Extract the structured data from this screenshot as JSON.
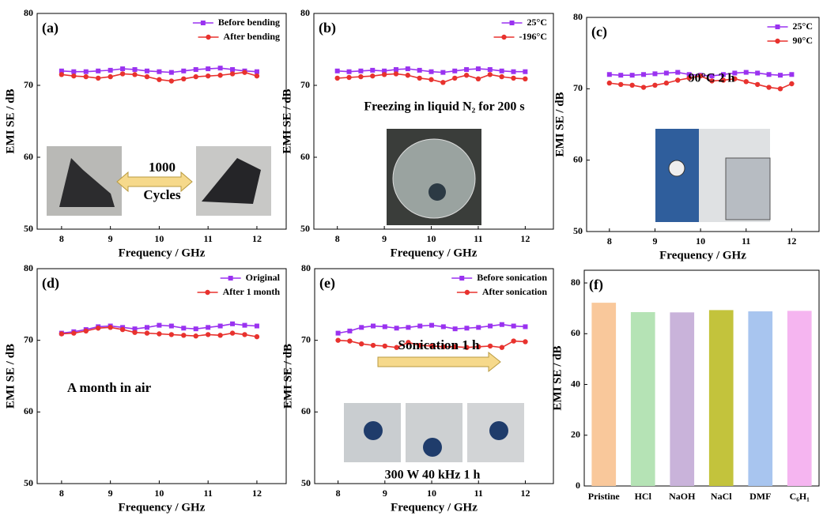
{
  "chart_data": [
    {
      "type": "line",
      "label": "(a)",
      "xlabel": "Frequency / GHz",
      "ylabel": "EMI SE / dB",
      "x": [
        8,
        8.25,
        8.5,
        8.75,
        9,
        9.25,
        9.5,
        9.75,
        10,
        10.25,
        10.5,
        10.75,
        11,
        11.25,
        11.5,
        11.75,
        12
      ],
      "series": [
        {
          "name": "Before bending",
          "color": "#9a32f0",
          "marker": "square",
          "values": [
            72,
            71.9,
            71.9,
            72,
            72.1,
            72.3,
            72.2,
            72,
            71.9,
            71.8,
            72,
            72.2,
            72.3,
            72.4,
            72.2,
            72,
            71.9
          ]
        },
        {
          "name": "After bending",
          "color": "#e8322e",
          "marker": "circle",
          "values": [
            71.5,
            71.3,
            71.2,
            71,
            71.2,
            71.6,
            71.5,
            71.2,
            70.8,
            70.6,
            70.9,
            71.2,
            71.3,
            71.4,
            71.6,
            71.8,
            71.3
          ]
        }
      ],
      "xlim": [
        7.5,
        12.6
      ],
      "ylim": [
        50,
        80
      ],
      "xticks": [
        8,
        9,
        10,
        11,
        12
      ],
      "yticks": [
        50,
        60,
        70,
        80
      ],
      "legend": "upper right",
      "annotations": [
        "1000",
        "Cycles"
      ]
    },
    {
      "type": "line",
      "label": "(b)",
      "xlabel": "Frequency / GHz",
      "ylabel": "EMI SE / dB",
      "x": [
        8,
        8.25,
        8.5,
        8.75,
        9,
        9.25,
        9.5,
        9.75,
        10,
        10.25,
        10.5,
        10.75,
        11,
        11.25,
        11.5,
        11.75,
        12
      ],
      "series": [
        {
          "name": "25°C",
          "color": "#9a32f0",
          "marker": "square",
          "values": [
            72,
            71.9,
            72,
            72.1,
            72,
            72.2,
            72.3,
            72.1,
            71.9,
            71.8,
            72,
            72.2,
            72.3,
            72.2,
            72,
            71.9,
            71.9
          ]
        },
        {
          "name": "-196°C",
          "color": "#e8322e",
          "marker": "circle",
          "values": [
            71,
            71.1,
            71.2,
            71.3,
            71.5,
            71.6,
            71.4,
            71,
            70.8,
            70.4,
            71,
            71.4,
            70.9,
            71.5,
            71.2,
            71,
            70.9
          ]
        }
      ],
      "xlim": [
        7.5,
        12.6
      ],
      "ylim": [
        50,
        80
      ],
      "xticks": [
        8,
        9,
        10,
        11,
        12
      ],
      "yticks": [
        50,
        60,
        70,
        80
      ],
      "legend": "upper right",
      "annotations": [
        "Freezing in liquid N₂ for 200 s"
      ]
    },
    {
      "type": "line",
      "label": "(c)",
      "xlabel": "Frequency / GHz",
      "ylabel": "EMI SE / dB",
      "x": [
        8,
        8.25,
        8.5,
        8.75,
        9,
        9.25,
        9.5,
        9.75,
        10,
        10.25,
        10.5,
        10.75,
        11,
        11.25,
        11.5,
        11.75,
        12
      ],
      "series": [
        {
          "name": "25°C",
          "color": "#9a32f0",
          "marker": "square",
          "values": [
            72,
            71.9,
            71.9,
            72,
            72.1,
            72.2,
            72.3,
            72,
            71.9,
            71.8,
            72,
            72.2,
            72.3,
            72.2,
            72,
            71.9,
            72
          ]
        },
        {
          "name": "90°C",
          "color": "#e8322e",
          "marker": "circle",
          "values": [
            70.8,
            70.6,
            70.5,
            70.2,
            70.5,
            70.8,
            71.2,
            71.5,
            71.8,
            71.1,
            71.2,
            71.4,
            71,
            70.6,
            70.2,
            70,
            70.7
          ]
        }
      ],
      "xlim": [
        7.5,
        12.6
      ],
      "ylim": [
        50,
        80
      ],
      "xticks": [
        8,
        9,
        10,
        11,
        12
      ],
      "yticks": [
        50,
        60,
        70,
        80
      ],
      "legend": "upper right",
      "annotations": [
        "90°C 2 h"
      ]
    },
    {
      "type": "line",
      "label": "(d)",
      "xlabel": "Frequency / GHz",
      "ylabel": "EMI SE / dB",
      "x": [
        8,
        8.25,
        8.5,
        8.75,
        9,
        9.25,
        9.5,
        9.75,
        10,
        10.25,
        10.5,
        10.75,
        11,
        11.25,
        11.5,
        11.75,
        12
      ],
      "series": [
        {
          "name": "Original",
          "color": "#9a32f0",
          "marker": "square",
          "values": [
            71,
            71.2,
            71.5,
            71.9,
            72,
            71.8,
            71.6,
            71.8,
            72.1,
            72,
            71.7,
            71.6,
            71.8,
            72,
            72.3,
            72.1,
            72
          ]
        },
        {
          "name": "After 1 month",
          "color": "#e8322e",
          "marker": "circle",
          "values": [
            70.9,
            71,
            71.3,
            71.7,
            71.8,
            71.5,
            71.1,
            71,
            70.9,
            70.8,
            70.7,
            70.6,
            70.8,
            70.7,
            71,
            70.8,
            70.5
          ]
        }
      ],
      "xlim": [
        7.5,
        12.6
      ],
      "ylim": [
        50,
        80
      ],
      "xticks": [
        8,
        9,
        10,
        11,
        12
      ],
      "yticks": [
        50,
        60,
        70,
        80
      ],
      "legend": "upper right",
      "annotations": [
        "A month in air"
      ]
    },
    {
      "type": "line",
      "label": "(e)",
      "xlabel": "Frequency / GHz",
      "ylabel": "EMI SE / dB",
      "x": [
        8,
        8.25,
        8.5,
        8.75,
        9,
        9.25,
        9.5,
        9.75,
        10,
        10.25,
        10.5,
        10.75,
        11,
        11.25,
        11.5,
        11.75,
        12
      ],
      "series": [
        {
          "name": "Before sonication",
          "color": "#9a32f0",
          "marker": "square",
          "values": [
            71,
            71.3,
            71.8,
            72,
            71.9,
            71.7,
            71.8,
            72,
            72.1,
            71.9,
            71.6,
            71.7,
            71.8,
            72,
            72.2,
            72,
            71.9
          ]
        },
        {
          "name": "After sonication",
          "color": "#e8322e",
          "marker": "circle",
          "values": [
            70,
            69.9,
            69.5,
            69.3,
            69.2,
            69,
            69.7,
            69.3,
            69.2,
            69.1,
            69.1,
            69,
            69.1,
            69.2,
            69,
            69.9,
            69.8
          ]
        }
      ],
      "xlim": [
        7.5,
        12.6
      ],
      "ylim": [
        50,
        80
      ],
      "xticks": [
        8,
        9,
        10,
        11,
        12
      ],
      "yticks": [
        50,
        60,
        70,
        80
      ],
      "legend": "upper right",
      "annotations": [
        "Sonication 1 h",
        "300 W  40 kHz  1 h"
      ]
    },
    {
      "type": "bar",
      "label": "(f)",
      "ylabel": "EMI SE / dB",
      "categories": [
        "Pristine",
        "HCl",
        "NaOH",
        "NaCl",
        "DMF",
        "C₆H₁"
      ],
      "values": [
        72.2,
        68.5,
        68.4,
        69.3,
        68.8,
        69.0
      ],
      "colors": [
        "#f9c89b",
        "#b5e3b5",
        "#c9b3da",
        "#c3c33c",
        "#a8c5ef",
        "#f5b5f0"
      ],
      "ylim": [
        0,
        85
      ],
      "yticks": [
        0,
        20,
        40,
        60,
        80
      ]
    }
  ]
}
